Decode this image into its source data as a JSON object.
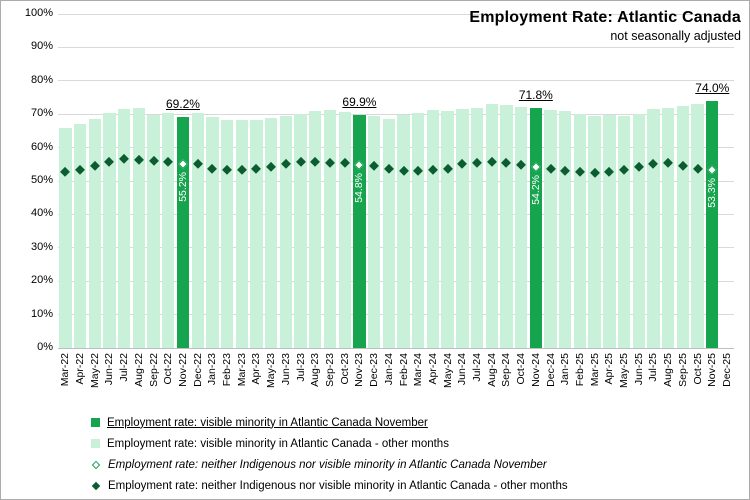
{
  "chart_data": {
    "type": "bar",
    "title": "Employment Rate: Atlantic Canada",
    "subtitle": "not seasonally adjusted",
    "xlabel": "",
    "ylabel": "",
    "ylim": [
      0,
      100
    ],
    "ytick_step": 10,
    "ytick_labels": [
      "0%",
      "10%",
      "20%",
      "30%",
      "40%",
      "50%",
      "60%",
      "70%",
      "80%",
      "90%",
      "100%"
    ],
    "grid": true,
    "legend_position": "bottom",
    "categories": [
      "Mar-22",
      "Apr-22",
      "May-22",
      "Jun-22",
      "Jul-22",
      "Aug-22",
      "Sep-22",
      "Oct-22",
      "Nov-22",
      "Dec-22",
      "Jan-23",
      "Feb-23",
      "Mar-23",
      "Apr-23",
      "May-23",
      "Jun-23",
      "Jul-23",
      "Aug-23",
      "Sep-23",
      "Oct-23",
      "Nov-23",
      "Dec-23",
      "Jan-24",
      "Feb-24",
      "Mar-24",
      "Apr-24",
      "May-24",
      "Jun-24",
      "Jul-24",
      "Aug-24",
      "Sep-24",
      "Oct-24",
      "Nov-24",
      "Dec-24",
      "Jan-25",
      "Feb-25",
      "Mar-25",
      "Apr-25",
      "May-25",
      "Jun-25",
      "Jul-25",
      "Aug-25",
      "Sep-25",
      "Oct-25",
      "Nov-25",
      "Dec-25"
    ],
    "series": [
      {
        "name": "Employment rate: visible minority in Atlantic Canada",
        "type": "bar",
        "values": [
          65.9,
          67.1,
          68.5,
          70.5,
          71.6,
          71.9,
          69.9,
          70.3,
          69.2,
          70.3,
          69.3,
          68.4,
          68.2,
          68.4,
          68.9,
          69.6,
          70.2,
          70.9,
          71.4,
          70.6,
          69.9,
          69.4,
          68.5,
          69.8,
          70.5,
          71.2,
          71.1,
          71.5,
          71.8,
          73.0,
          72.7,
          72.3,
          71.8,
          71.2,
          70.9,
          70.2,
          69.4,
          69.7,
          69.4,
          70.2,
          71.6,
          72.0,
          72.6,
          73.1,
          74.0,
          null
        ]
      },
      {
        "name": "Employment rate: neither Indigenous nor visible minority in Atlantic Canada",
        "type": "scatter",
        "marker": "diamond",
        "values": [
          52.8,
          53.4,
          54.6,
          55.8,
          56.6,
          56.4,
          56.0,
          55.8,
          55.2,
          55.3,
          53.8,
          53.4,
          53.4,
          53.8,
          54.4,
          55.2,
          55.8,
          55.8,
          55.6,
          55.4,
          54.8,
          54.6,
          53.8,
          53.2,
          53.2,
          53.4,
          53.8,
          55.1,
          55.6,
          55.8,
          55.6,
          55.0,
          54.2,
          53.8,
          53.1,
          52.8,
          52.6,
          52.8,
          53.4,
          54.4,
          55.1,
          55.4,
          54.6,
          53.8,
          53.3,
          null
        ]
      }
    ],
    "november_annotations": [
      {
        "index": 8,
        "category": "Nov-22",
        "bar_label": "69.2%",
        "diamond_label": "55.2%"
      },
      {
        "index": 20,
        "category": "Nov-23",
        "bar_label": "69.9%",
        "diamond_label": "54.8%"
      },
      {
        "index": 32,
        "category": "Nov-24",
        "bar_label": "71.8%",
        "diamond_label": "54.2%"
      },
      {
        "index": 44,
        "category": "Nov-25",
        "bar_label": "74.0%",
        "diamond_label": "53.3%"
      }
    ]
  },
  "legend": {
    "items": [
      {
        "marker": "square-dark-green",
        "label": "Employment rate: visible minority in Atlantic Canada November",
        "underline": true,
        "italic": false
      },
      {
        "marker": "square-light-green",
        "label": "Employment rate: visible minority in Atlantic Canada - other months",
        "underline": false,
        "italic": false
      },
      {
        "marker": "diamond-open-green",
        "label": "Employment rate: neither Indigenous nor visible minority in Atlantic Canada November",
        "underline": false,
        "italic": true
      },
      {
        "marker": "diamond-filled-dark",
        "label": "Employment rate: neither Indigenous nor visible minority in Atlantic Canada - other months",
        "underline": false,
        "italic": false
      }
    ]
  },
  "colors": {
    "bar_november": "#17a44f",
    "bar_other": "#c9f1d9",
    "diamond_other": "#0b5c2f",
    "diamond_november_fill": "#ffffff",
    "diamond_november_border": "#17a44f",
    "gridline": "#d9d9d9",
    "axis_line": "#bfbfbf",
    "annotation_text": "#000000",
    "in_bar_label_text": "#ffffff"
  }
}
